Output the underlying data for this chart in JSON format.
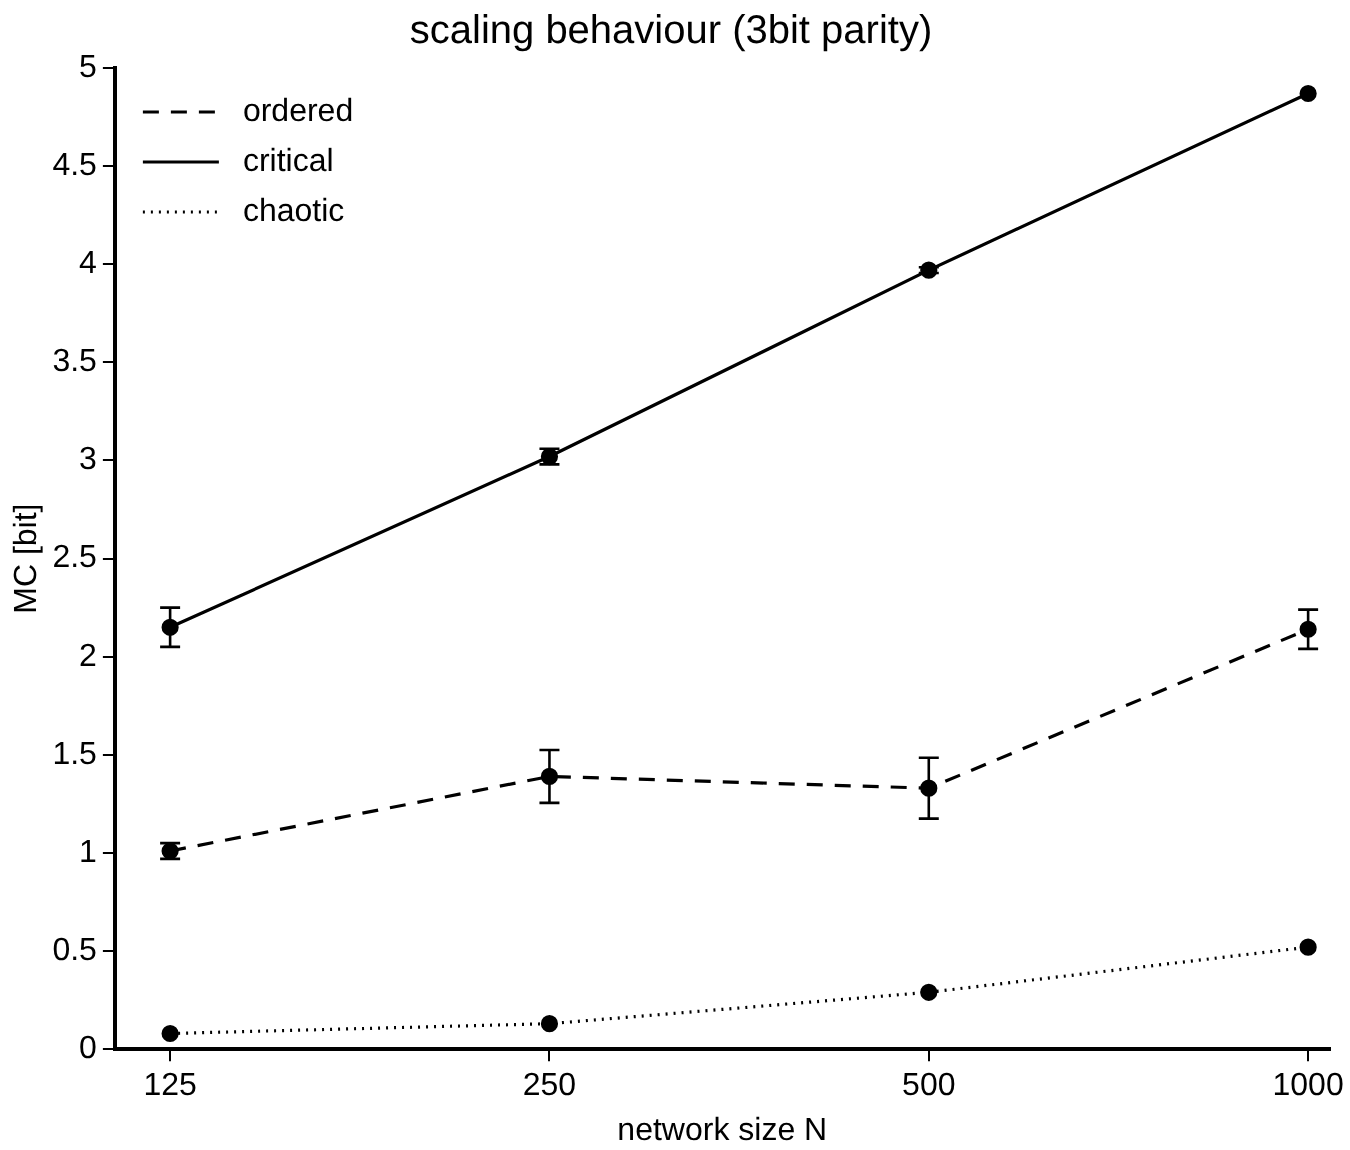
{
  "chart_data": {
    "type": "line",
    "title": "scaling behaviour (3bit parity)",
    "xlabel": "network size N",
    "ylabel": "MC [bit]",
    "log": "x",
    "x": [
      125,
      250,
      500,
      1000
    ],
    "xlim": [
      113,
      1040
    ],
    "xticks": [
      125,
      250,
      500,
      1000
    ],
    "ylim": [
      0,
      5
    ],
    "yticks": [
      0,
      0.5,
      1,
      1.5,
      2,
      2.5,
      3,
      3.5,
      4,
      4.5,
      5
    ],
    "grid": false,
    "legend": "top left",
    "marker": "circle",
    "series": [
      {
        "name": "ordered",
        "color": "#000000",
        "line_style": "dashed",
        "values": [
          1.01,
          1.39,
          1.33,
          2.14
        ],
        "errors": [
          0.04,
          0.135,
          0.155,
          0.1
        ]
      },
      {
        "name": "critical",
        "color": "#000000",
        "line_style": "solid",
        "values": [
          2.15,
          3.02,
          3.97,
          4.87
        ],
        "errors": [
          0.1,
          0.04,
          0.015,
          null
        ]
      },
      {
        "name": "chaotic",
        "color": "#000000",
        "line_style": "dotted",
        "values": [
          0.08,
          0.13,
          0.29,
          0.52
        ],
        "errors": [
          null,
          null,
          null,
          null
        ]
      }
    ]
  }
}
